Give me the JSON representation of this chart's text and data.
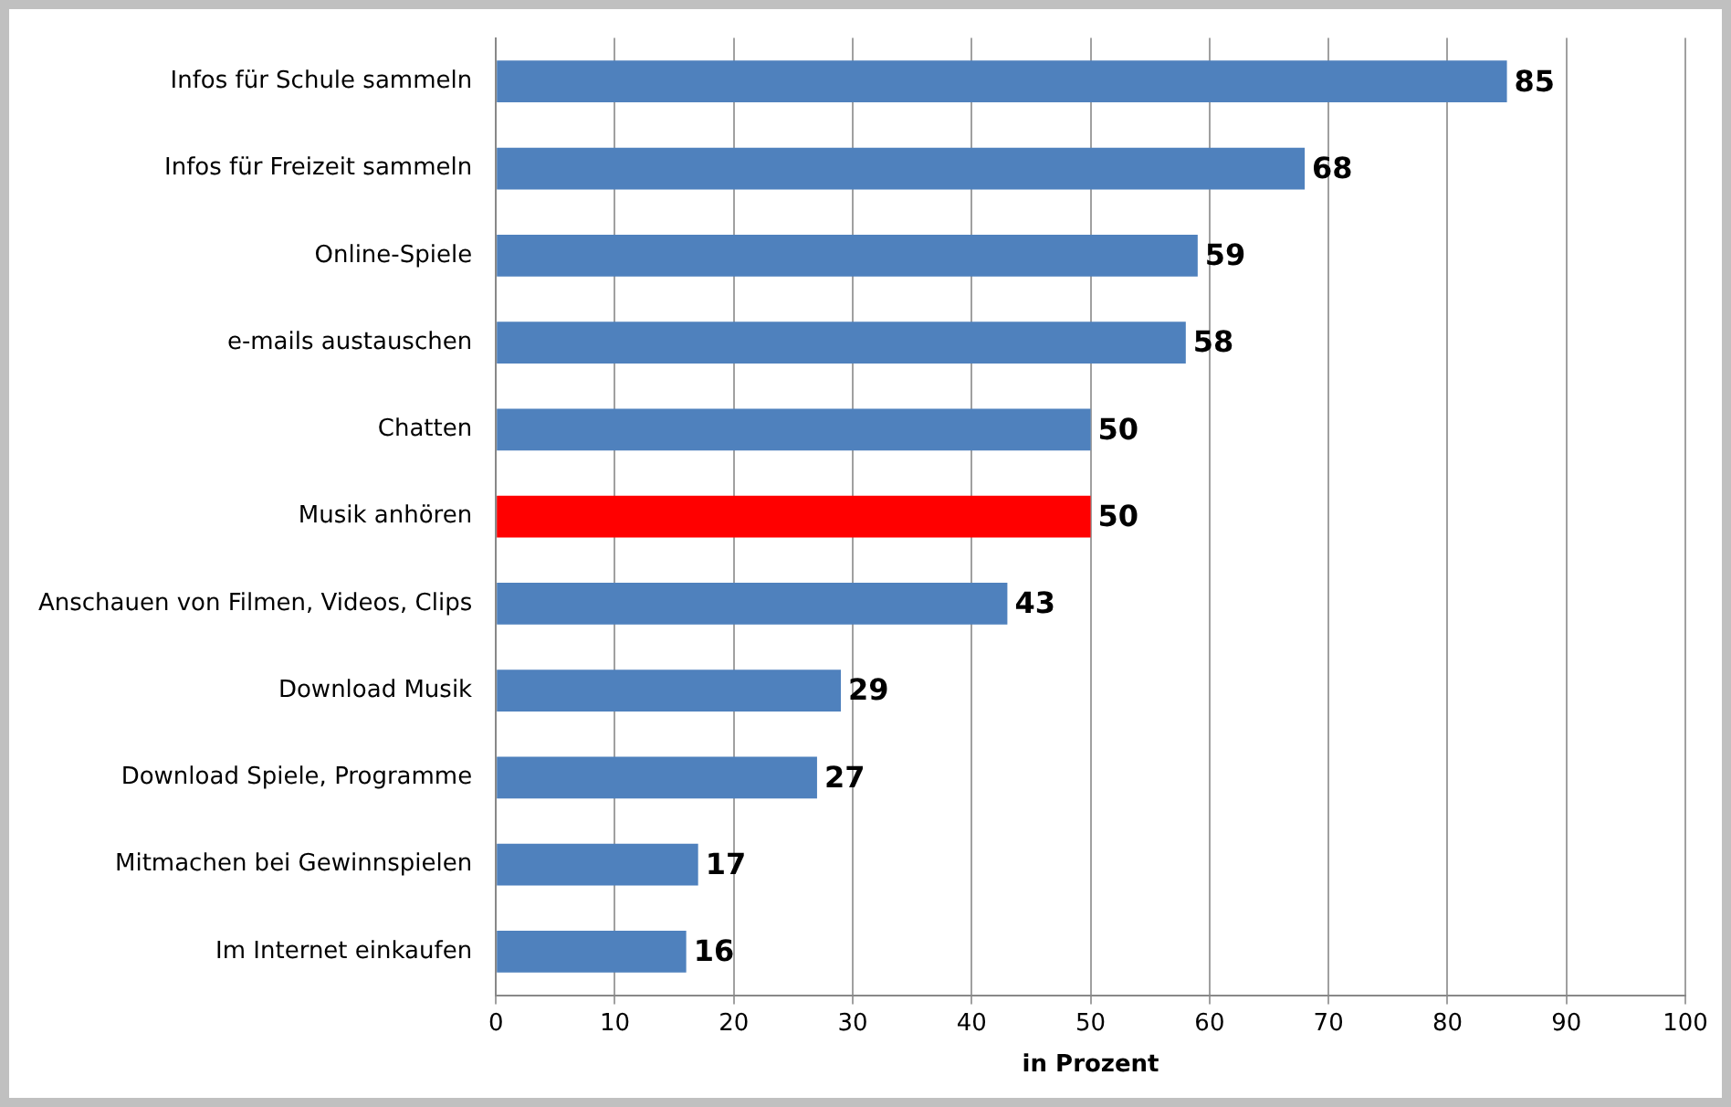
{
  "chart_data": {
    "type": "bar",
    "orientation": "horizontal",
    "xlabel": "in Prozent",
    "categories": [
      "Infos für Schule sammeln",
      "Infos für Freizeit sammeln",
      "Online-Spiele",
      "e-mails austauschen",
      "Chatten",
      "Musik anhören",
      "Anschauen von Filmen, Videos, Clips",
      "Download Musik",
      "Download Spiele, Programme",
      "Mitmachen bei Gewinnspielen",
      "Im Internet einkaufen"
    ],
    "values": [
      85,
      68,
      59,
      58,
      50,
      50,
      43,
      29,
      27,
      17,
      16
    ],
    "colors": [
      "#4f81bd",
      "#4f81bd",
      "#4f81bd",
      "#4f81bd",
      "#4f81bd",
      "#ff0000",
      "#4f81bd",
      "#4f81bd",
      "#4f81bd",
      "#4f81bd",
      "#4f81bd"
    ],
    "xlim": [
      0,
      100
    ],
    "xticks": [
      0,
      10,
      20,
      30,
      40,
      50,
      60,
      70,
      80,
      90,
      100
    ],
    "grid": "x",
    "legend": false,
    "data_labels": true
  }
}
